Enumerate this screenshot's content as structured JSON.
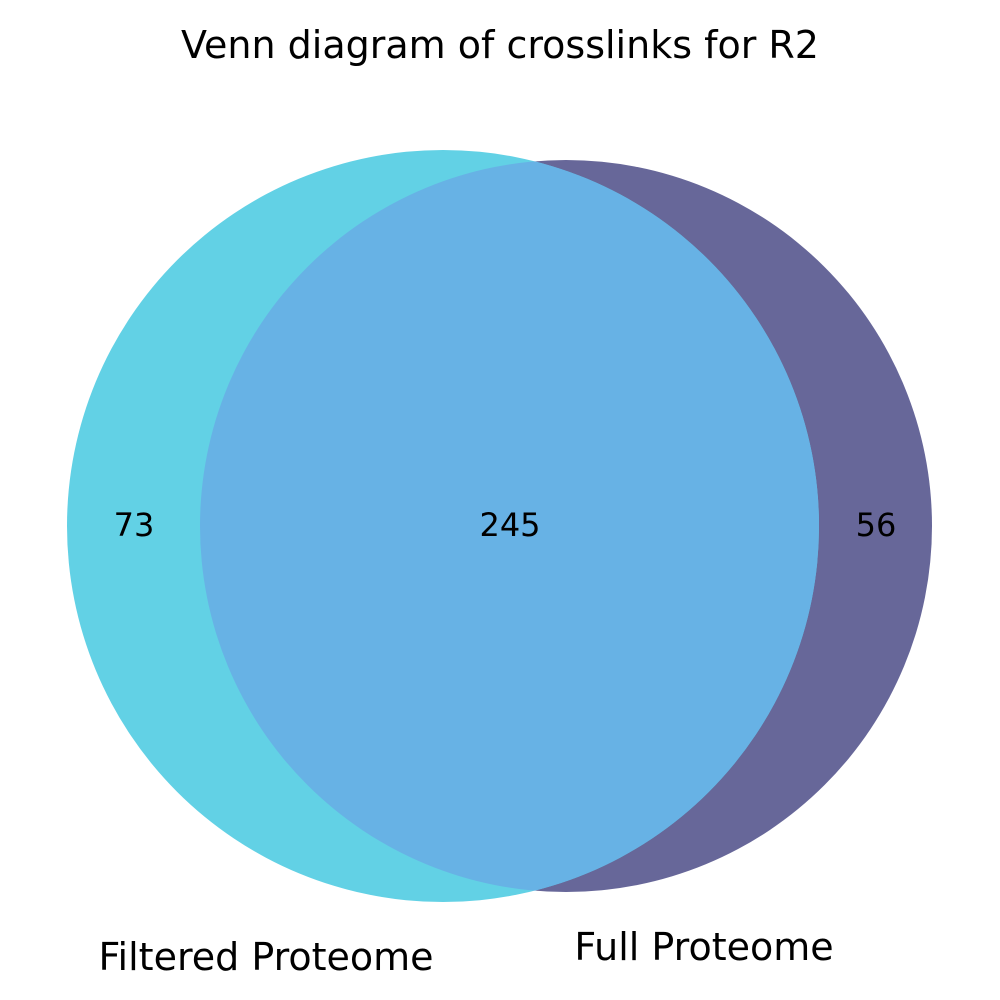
{
  "title": "Venn diagram of crosslinks for R2",
  "sets": {
    "left": {
      "name": "Filtered Proteome",
      "color": "#62d1e5"
    },
    "right": {
      "name": "Full Proteome",
      "color": "#676799"
    }
  },
  "overlap_color": "#67b2e5",
  "regions": {
    "left_only": "73",
    "both": "245",
    "right_only": "56"
  }
}
